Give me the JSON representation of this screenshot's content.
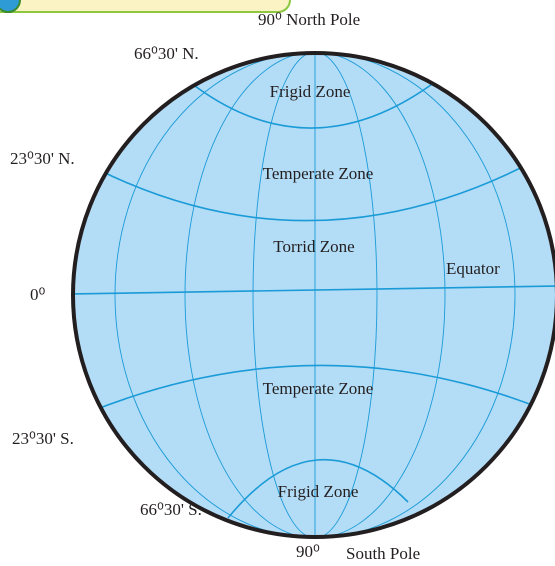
{
  "labels": {
    "north_pole": "90⁰ North Pole",
    "arctic": "66⁰30' N.",
    "frigid_north": "Frigid Zone",
    "tropic_north": "23⁰30' N.",
    "temperate_north": "Temperate Zone",
    "torrid": "Torrid Zone",
    "equator": "Equator",
    "zero": "0⁰",
    "temperate_south": "Temperate Zone",
    "tropic_south": "23⁰30' S.",
    "frigid_south": "Frigid Zone",
    "antarctic": "66⁰30' S.",
    "south_deg": "90⁰",
    "south_pole": "South Pole"
  }
}
